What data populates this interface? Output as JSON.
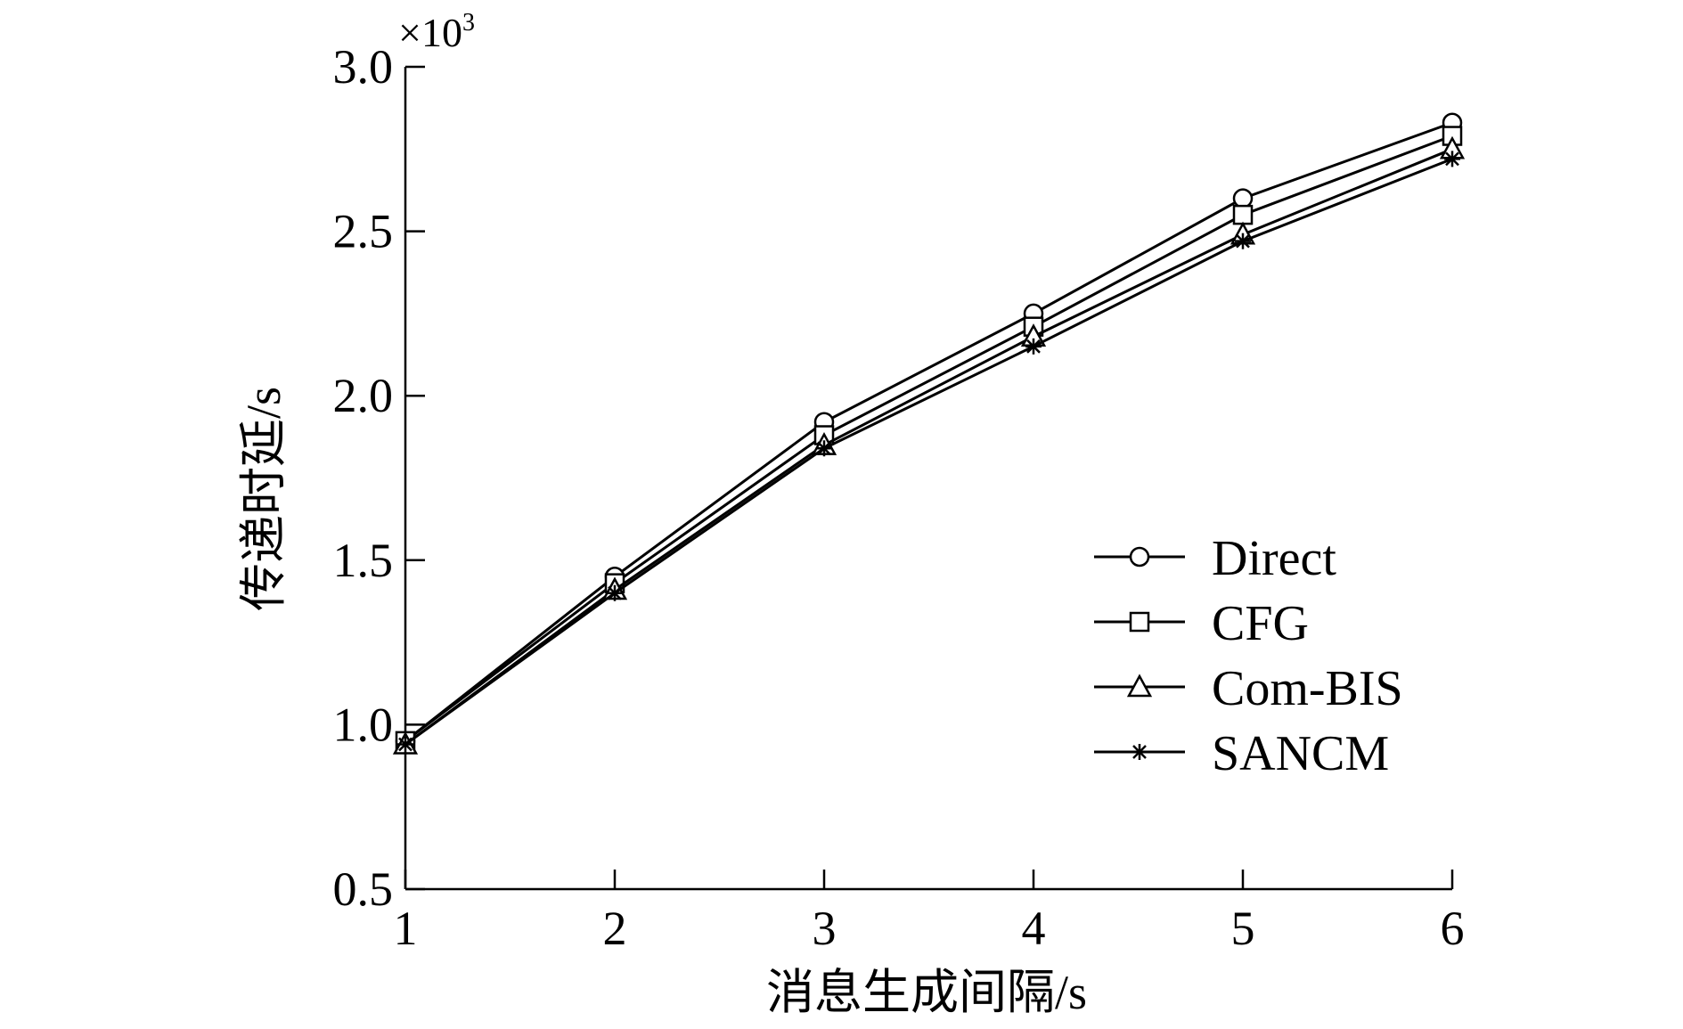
{
  "chart_data": {
    "type": "line",
    "title": "",
    "xlabel": "消息生成间隔/s",
    "ylabel": "传递时延/s",
    "y_multiplier_base": "×10",
    "y_multiplier_exp": "3",
    "x": [
      1,
      2,
      3,
      4,
      5,
      6
    ],
    "xlim": [
      1,
      6
    ],
    "ylim": [
      0.5,
      3.0
    ],
    "x_ticks": [
      "1",
      "2",
      "3",
      "4",
      "5",
      "6"
    ],
    "y_ticks": [
      "0.5",
      "1.0",
      "1.5",
      "2.0",
      "2.5",
      "3.0"
    ],
    "grid": false,
    "legend_position": "lower-right",
    "series": [
      {
        "name": "Direct",
        "marker": "circle",
        "values": [
          0.95,
          1.45,
          1.92,
          2.25,
          2.6,
          2.83
        ]
      },
      {
        "name": "CFG",
        "marker": "square",
        "values": [
          0.95,
          1.43,
          1.88,
          2.21,
          2.55,
          2.79
        ]
      },
      {
        "name": "Com-BIS",
        "marker": "triangle",
        "values": [
          0.94,
          1.41,
          1.85,
          2.18,
          2.49,
          2.75
        ]
      },
      {
        "name": "SANCM",
        "marker": "star",
        "values": [
          0.94,
          1.4,
          1.84,
          2.15,
          2.47,
          2.72
        ]
      }
    ],
    "line_color": "#000000"
  }
}
